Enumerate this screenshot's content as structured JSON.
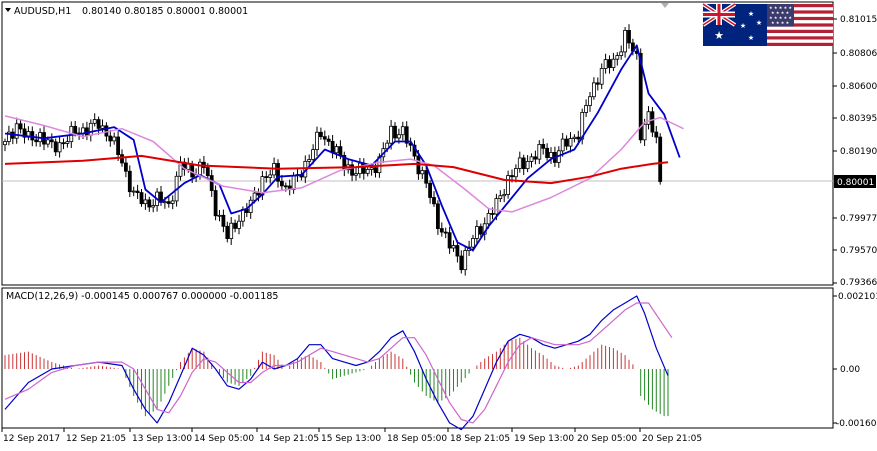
{
  "header": {
    "symbol_timeframe": "AUDUSD,H1",
    "ohlc": "0.80140 0.80185 0.80001 0.80001"
  },
  "macd_header": "MACD(12,26,9) -0.000145 0.000767 0.000000 -0.001185",
  "colors": {
    "bull_candle": "#000000",
    "bear_candle": "#000000",
    "fast_ma": "#0000cc",
    "slow_ma": "#dd88dd",
    "long_ma": "#dd0000",
    "macd_positive": "#cc3333",
    "macd_negative": "#228822",
    "macd_line": "#0000cc",
    "signal_line": "#cc66cc"
  },
  "flags": {
    "left": "australia-flag",
    "right": "usa-flag"
  },
  "chart_data": [
    {
      "type": "candlestick",
      "title": "AUDUSD,H1",
      "y_ticks": [
        "0.81015",
        "0.80806",
        "0.80600",
        "0.80395",
        "0.80190",
        "0.79977",
        "0.79570",
        "0.79366"
      ],
      "current_price": "0.80001",
      "ylim": [
        0.79366,
        0.81015
      ],
      "x_ticks": [
        "12 Sep 2017",
        "12 Sep 21:05",
        "13 Sep 13:00",
        "14 Sep 05:00",
        "14 Sep 21:05",
        "15 Sep 13:00",
        "18 Sep 05:00",
        "18 Sep 21:05",
        "19 Sep 13:00",
        "20 Sep 05:00",
        "20 Sep 21:05"
      ],
      "close_anchors": [
        [
          0,
          0.8023
        ],
        [
          3,
          0.8036
        ],
        [
          6,
          0.8026
        ],
        [
          9,
          0.8029
        ],
        [
          12,
          0.8021
        ],
        [
          15,
          0.8025
        ],
        [
          18,
          0.8031
        ],
        [
          21,
          0.8033
        ],
        [
          24,
          0.8036
        ],
        [
          27,
          0.8028
        ],
        [
          30,
          0.8012
        ],
        [
          33,
          0.7992
        ],
        [
          36,
          0.7986
        ],
        [
          39,
          0.7989
        ],
        [
          42,
          0.7985
        ],
        [
          45,
          0.801
        ],
        [
          48,
          0.8006
        ],
        [
          51,
          0.801
        ],
        [
          54,
          0.7984
        ],
        [
          57,
          0.7965
        ],
        [
          60,
          0.7978
        ],
        [
          63,
          0.7985
        ],
        [
          66,
          0.8002
        ],
        [
          69,
          0.8006
        ],
        [
          72,
          0.7996
        ],
        [
          75,
          0.8002
        ],
        [
          78,
          0.8016
        ],
        [
          81,
          0.803
        ],
        [
          84,
          0.8022
        ],
        [
          87,
          0.801
        ],
        [
          90,
          0.8006
        ],
        [
          93,
          0.8007
        ],
        [
          96,
          0.8012
        ],
        [
          99,
          0.8032
        ],
        [
          102,
          0.803
        ],
        [
          105,
          0.8016
        ],
        [
          108,
          0.7998
        ],
        [
          111,
          0.7975
        ],
        [
          114,
          0.796
        ],
        [
          117,
          0.795
        ],
        [
          120,
          0.7964
        ],
        [
          123,
          0.7975
        ],
        [
          126,
          0.7985
        ],
        [
          129,
          0.8002
        ],
        [
          132,
          0.801
        ],
        [
          135,
          0.8015
        ],
        [
          138,
          0.802
        ],
        [
          141,
          0.8015
        ],
        [
          144,
          0.8025
        ],
        [
          147,
          0.803
        ],
        [
          150,
          0.8055
        ],
        [
          153,
          0.807
        ],
        [
          156,
          0.8075
        ],
        [
          159,
          0.809
        ],
        [
          162,
          0.8078
        ],
        [
          163,
          0.8031
        ],
        [
          165,
          0.804
        ],
        [
          167,
          0.8025
        ],
        [
          168,
          0.8
        ]
      ],
      "series": [
        {
          "name": "fast_ma",
          "values": [
            [
              0,
              0.803
            ],
            [
              10,
              0.8027
            ],
            [
              20,
              0.803
            ],
            [
              28,
              0.8034
            ],
            [
              33,
              0.8026
            ],
            [
              36,
              0.7995
            ],
            [
              40,
              0.7987
            ],
            [
              46,
              0.7999
            ],
            [
              50,
              0.8004
            ],
            [
              55,
              0.7998
            ],
            [
              58,
              0.798
            ],
            [
              62,
              0.7983
            ],
            [
              66,
              0.7992
            ],
            [
              70,
              0.8003
            ],
            [
              76,
              0.8004
            ],
            [
              82,
              0.802
            ],
            [
              88,
              0.8014
            ],
            [
              94,
              0.801
            ],
            [
              100,
              0.8025
            ],
            [
              104,
              0.8025
            ],
            [
              108,
              0.801
            ],
            [
              112,
              0.7985
            ],
            [
              116,
              0.7962
            ],
            [
              120,
              0.7957
            ],
            [
              124,
              0.7972
            ],
            [
              128,
              0.7984
            ],
            [
              134,
              0.8002
            ],
            [
              140,
              0.8014
            ],
            [
              146,
              0.802
            ],
            [
              152,
              0.8043
            ],
            [
              158,
              0.807
            ],
            [
              162,
              0.8085
            ],
            [
              165,
              0.8055
            ],
            [
              169,
              0.8042
            ],
            [
              173,
              0.8015
            ]
          ]
        },
        {
          "name": "slow_ma",
          "values": [
            [
              0,
              0.8041
            ],
            [
              10,
              0.8035
            ],
            [
              20,
              0.8028
            ],
            [
              30,
              0.8033
            ],
            [
              38,
              0.8025
            ],
            [
              46,
              0.8008
            ],
            [
              56,
              0.7997
            ],
            [
              66,
              0.7993
            ],
            [
              76,
              0.7996
            ],
            [
              86,
              0.8007
            ],
            [
              96,
              0.8012
            ],
            [
              104,
              0.8014
            ],
            [
              110,
              0.801
            ],
            [
              118,
              0.7995
            ],
            [
              124,
              0.7983
            ],
            [
              130,
              0.7981
            ],
            [
              140,
              0.799
            ],
            [
              150,
              0.8002
            ],
            [
              158,
              0.802
            ],
            [
              164,
              0.8037
            ],
            [
              168,
              0.804
            ],
            [
              174,
              0.8033
            ]
          ]
        },
        {
          "name": "long_ma",
          "values": [
            [
              0,
              0.8011
            ],
            [
              20,
              0.8013
            ],
            [
              35,
              0.8016
            ],
            [
              50,
              0.801
            ],
            [
              70,
              0.8008
            ],
            [
              90,
              0.8009
            ],
            [
              105,
              0.8011
            ],
            [
              115,
              0.8009
            ],
            [
              128,
              0.8001
            ],
            [
              140,
              0.7999
            ],
            [
              150,
              0.8003
            ],
            [
              158,
              0.8008
            ],
            [
              166,
              0.8011
            ],
            [
              170,
              0.8012
            ]
          ]
        }
      ]
    },
    {
      "type": "macd",
      "title": "MACD(12,26,9) -0.000145 0.000767 0.000000 -0.001185",
      "y_ticks": [
        "0.002101",
        "0.00",
        "-0.001603"
      ],
      "ylim": [
        -0.001603,
        0.002101
      ],
      "histogram_anchors": [
        [
          0,
          0.0004
        ],
        [
          6,
          0.0005
        ],
        [
          12,
          0.0002
        ],
        [
          18,
          0.0
        ],
        [
          24,
          0.0001
        ],
        [
          30,
          0.0
        ],
        [
          33,
          -0.0008
        ],
        [
          36,
          -0.0014
        ],
        [
          39,
          -0.0012
        ],
        [
          42,
          -0.0005
        ],
        [
          45,
          0.0002
        ],
        [
          48,
          0.0006
        ],
        [
          51,
          0.0005
        ],
        [
          54,
          0.0
        ],
        [
          57,
          -0.0004
        ],
        [
          60,
          -0.0005
        ],
        [
          63,
          -0.0002
        ],
        [
          66,
          0.0005
        ],
        [
          69,
          0.0004
        ],
        [
          72,
          0.0
        ],
        [
          75,
          0.0003
        ],
        [
          78,
          0.0004
        ],
        [
          81,
          0.0002
        ],
        [
          84,
          -0.0003
        ],
        [
          87,
          -0.0002
        ],
        [
          90,
          -0.0001
        ],
        [
          93,
          0.0
        ],
        [
          96,
          0.0003
        ],
        [
          99,
          0.0005
        ],
        [
          102,
          0.0003
        ],
        [
          105,
          -0.0004
        ],
        [
          108,
          -0.0008
        ],
        [
          111,
          -0.001
        ],
        [
          114,
          -0.0008
        ],
        [
          117,
          -0.0004
        ],
        [
          120,
          0.0
        ],
        [
          123,
          0.0003
        ],
        [
          126,
          0.0005
        ],
        [
          129,
          0.0008
        ],
        [
          132,
          0.0009
        ],
        [
          135,
          0.0006
        ],
        [
          138,
          0.0004
        ],
        [
          141,
          0.0001
        ],
        [
          144,
          0.0
        ],
        [
          147,
          0.0001
        ],
        [
          150,
          0.0004
        ],
        [
          153,
          0.0007
        ],
        [
          156,
          0.0006
        ],
        [
          159,
          0.0004
        ],
        [
          162,
          0.0
        ],
        [
          163,
          -0.0008
        ],
        [
          166,
          -0.0012
        ],
        [
          169,
          -0.0014
        ],
        [
          170,
          -0.0014
        ]
      ],
      "series": [
        {
          "name": "macd_line",
          "values": [
            [
              0,
              -0.0012
            ],
            [
              6,
              -0.0004
            ],
            [
              12,
              0.0
            ],
            [
              18,
              0.0001
            ],
            [
              24,
              0.0002
            ],
            [
              30,
              0.0001
            ],
            [
              33,
              -0.0006
            ],
            [
              36,
              -0.0012
            ],
            [
              39,
              -0.0016
            ],
            [
              42,
              -0.001
            ],
            [
              45,
              -0.0002
            ],
            [
              48,
              0.0006
            ],
            [
              51,
              0.0004
            ],
            [
              54,
              0.0
            ],
            [
              57,
              -0.0005
            ],
            [
              60,
              -0.0006
            ],
            [
              63,
              -0.0003
            ],
            [
              66,
              0.0002
            ],
            [
              69,
              0.0
            ],
            [
              72,
              0.0001
            ],
            [
              75,
              0.0003
            ],
            [
              78,
              0.0007
            ],
            [
              81,
              0.0007
            ],
            [
              84,
              0.0003
            ],
            [
              87,
              0.0002
            ],
            [
              90,
              0.0001
            ],
            [
              93,
              0.0002
            ],
            [
              96,
              0.0005
            ],
            [
              99,
              0.0009
            ],
            [
              102,
              0.0011
            ],
            [
              105,
              0.0005
            ],
            [
              108,
              -0.0003
            ],
            [
              111,
              -0.001
            ],
            [
              114,
              -0.0016
            ],
            [
              117,
              -0.0018
            ],
            [
              120,
              -0.0014
            ],
            [
              123,
              -0.0006
            ],
            [
              126,
              0.0002
            ],
            [
              129,
              0.0008
            ],
            [
              132,
              0.001
            ],
            [
              135,
              0.0009
            ],
            [
              138,
              0.0007
            ],
            [
              141,
              0.0006
            ],
            [
              144,
              0.0007
            ],
            [
              147,
              0.0008
            ],
            [
              150,
              0.001
            ],
            [
              153,
              0.0014
            ],
            [
              156,
              0.0017
            ],
            [
              159,
              0.0019
            ],
            [
              162,
              0.0021
            ],
            [
              164,
              0.0016
            ],
            [
              167,
              0.0006
            ],
            [
              170,
              -0.0002
            ]
          ]
        },
        {
          "name": "signal_line",
          "values": [
            [
              0,
              -0.0009
            ],
            [
              6,
              -0.0006
            ],
            [
              12,
              -0.0001
            ],
            [
              18,
              0.0001
            ],
            [
              24,
              0.0002
            ],
            [
              30,
              0.0002
            ],
            [
              33,
              0.0
            ],
            [
              36,
              -0.0006
            ],
            [
              39,
              -0.0012
            ],
            [
              42,
              -0.0013
            ],
            [
              45,
              -0.0008
            ],
            [
              48,
              -0.0001
            ],
            [
              51,
              0.0003
            ],
            [
              54,
              0.0002
            ],
            [
              57,
              -0.0001
            ],
            [
              60,
              -0.0004
            ],
            [
              63,
              -0.0004
            ],
            [
              66,
              -0.0001
            ],
            [
              69,
              0.0001
            ],
            [
              72,
              0.0001
            ],
            [
              75,
              0.0002
            ],
            [
              78,
              0.0004
            ],
            [
              81,
              0.0006
            ],
            [
              84,
              0.0005
            ],
            [
              87,
              0.0004
            ],
            [
              90,
              0.0003
            ],
            [
              93,
              0.0002
            ],
            [
              96,
              0.0003
            ],
            [
              99,
              0.0006
            ],
            [
              102,
              0.0009
            ],
            [
              105,
              0.0009
            ],
            [
              108,
              0.0004
            ],
            [
              111,
              -0.0003
            ],
            [
              114,
              -0.001
            ],
            [
              117,
              -0.0015
            ],
            [
              120,
              -0.0016
            ],
            [
              123,
              -0.0012
            ],
            [
              126,
              -0.0005
            ],
            [
              129,
              0.0002
            ],
            [
              132,
              0.0007
            ],
            [
              135,
              0.0009
            ],
            [
              138,
              0.0008
            ],
            [
              141,
              0.0007
            ],
            [
              144,
              0.0007
            ],
            [
              147,
              0.0007
            ],
            [
              150,
              0.0008
            ],
            [
              153,
              0.0011
            ],
            [
              156,
              0.0014
            ],
            [
              159,
              0.0017
            ],
            [
              162,
              0.0019
            ],
            [
              165,
              0.0019
            ],
            [
              168,
              0.0014
            ],
            [
              171,
              0.0009
            ]
          ]
        }
      ]
    }
  ]
}
